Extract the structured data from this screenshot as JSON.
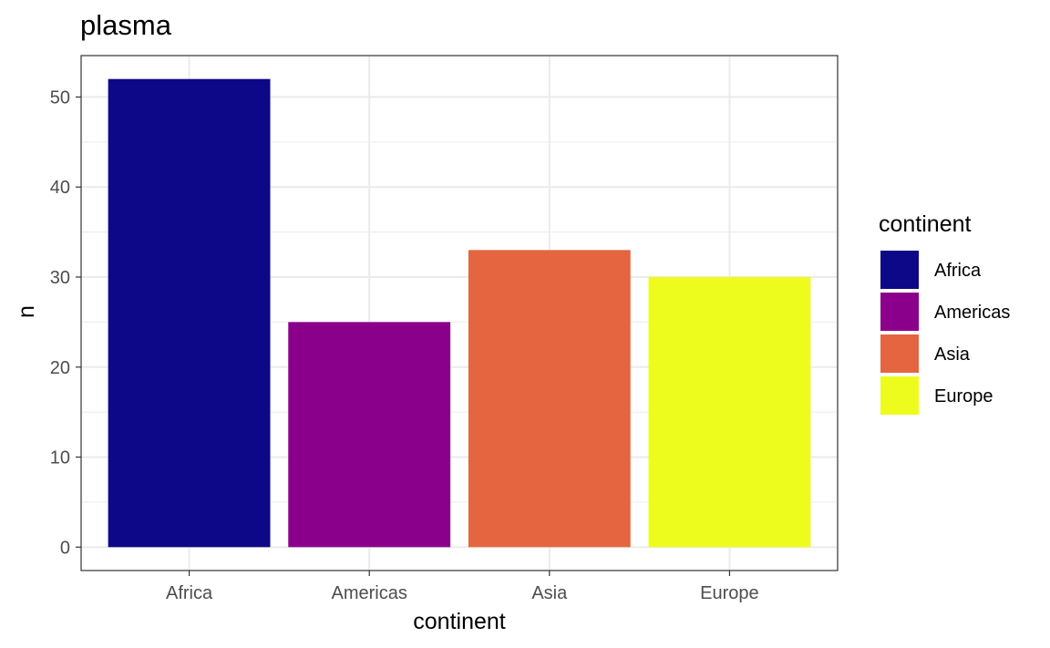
{
  "chart_data": {
    "type": "bar",
    "title": "plasma",
    "xlabel": "continent",
    "ylabel": "n",
    "categories": [
      "Africa",
      "Americas",
      "Asia",
      "Europe"
    ],
    "values": [
      52,
      25,
      33,
      30
    ],
    "colors": [
      "#0d0887",
      "#8b008b",
      "#e56540",
      "#eefc1d"
    ],
    "ylim": [
      -2.6,
      54.6
    ],
    "yticks": [
      0,
      10,
      20,
      30,
      40,
      50
    ],
    "grid": true,
    "legend": {
      "title": "continent",
      "position": "right",
      "entries": [
        "Africa",
        "Americas",
        "Asia",
        "Europe"
      ]
    }
  }
}
